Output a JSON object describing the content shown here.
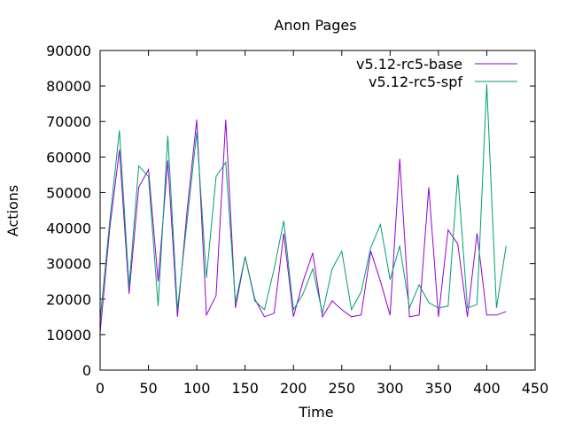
{
  "chart_data": {
    "type": "line",
    "title": "Anon Pages",
    "xlabel": "Time",
    "ylabel": "Actions",
    "xlim": [
      0,
      450
    ],
    "ylim": [
      0,
      90000
    ],
    "xticks": [
      0,
      50,
      100,
      150,
      200,
      250,
      300,
      350,
      400,
      450
    ],
    "yticks": [
      0,
      10000,
      20000,
      30000,
      40000,
      50000,
      60000,
      70000,
      80000,
      90000
    ],
    "grid": false,
    "legend_position": "top-right",
    "x": [
      0,
      10,
      20,
      30,
      40,
      50,
      60,
      70,
      80,
      90,
      100,
      110,
      120,
      130,
      140,
      150,
      160,
      170,
      180,
      190,
      200,
      210,
      220,
      230,
      240,
      250,
      260,
      270,
      280,
      290,
      300,
      310,
      320,
      330,
      340,
      350,
      360,
      370,
      380,
      390,
      400,
      410,
      420
    ],
    "series": [
      {
        "name": "v5.12-rc5-base",
        "color": "#9400d3",
        "values": [
          10500,
          40000,
          62000,
          21500,
          51500,
          56500,
          25000,
          59000,
          15000,
          45000,
          70500,
          15500,
          21000,
          70500,
          17500,
          32000,
          20000,
          15000,
          16000,
          38500,
          15000,
          25000,
          33000,
          15000,
          19500,
          17000,
          15000,
          15500,
          33500,
          25000,
          15500,
          59500,
          15000,
          15500,
          51500,
          15000,
          39500,
          35500,
          15000,
          38500,
          15500,
          15500,
          16500
        ]
      },
      {
        "name": "v5.12-rc5-spf",
        "color": "#009e73",
        "values": [
          14000,
          42000,
          67500,
          23500,
          57500,
          54500,
          18000,
          66000,
          17000,
          42000,
          67000,
          26000,
          54500,
          58500,
          19000,
          32000,
          19500,
          17000,
          28500,
          42000,
          17000,
          21500,
          28500,
          16000,
          28500,
          33500,
          17000,
          22000,
          34500,
          41000,
          25500,
          35000,
          17500,
          24000,
          19000,
          17500,
          18000,
          55000,
          17500,
          18500,
          80500,
          17500,
          35000
        ]
      }
    ]
  }
}
